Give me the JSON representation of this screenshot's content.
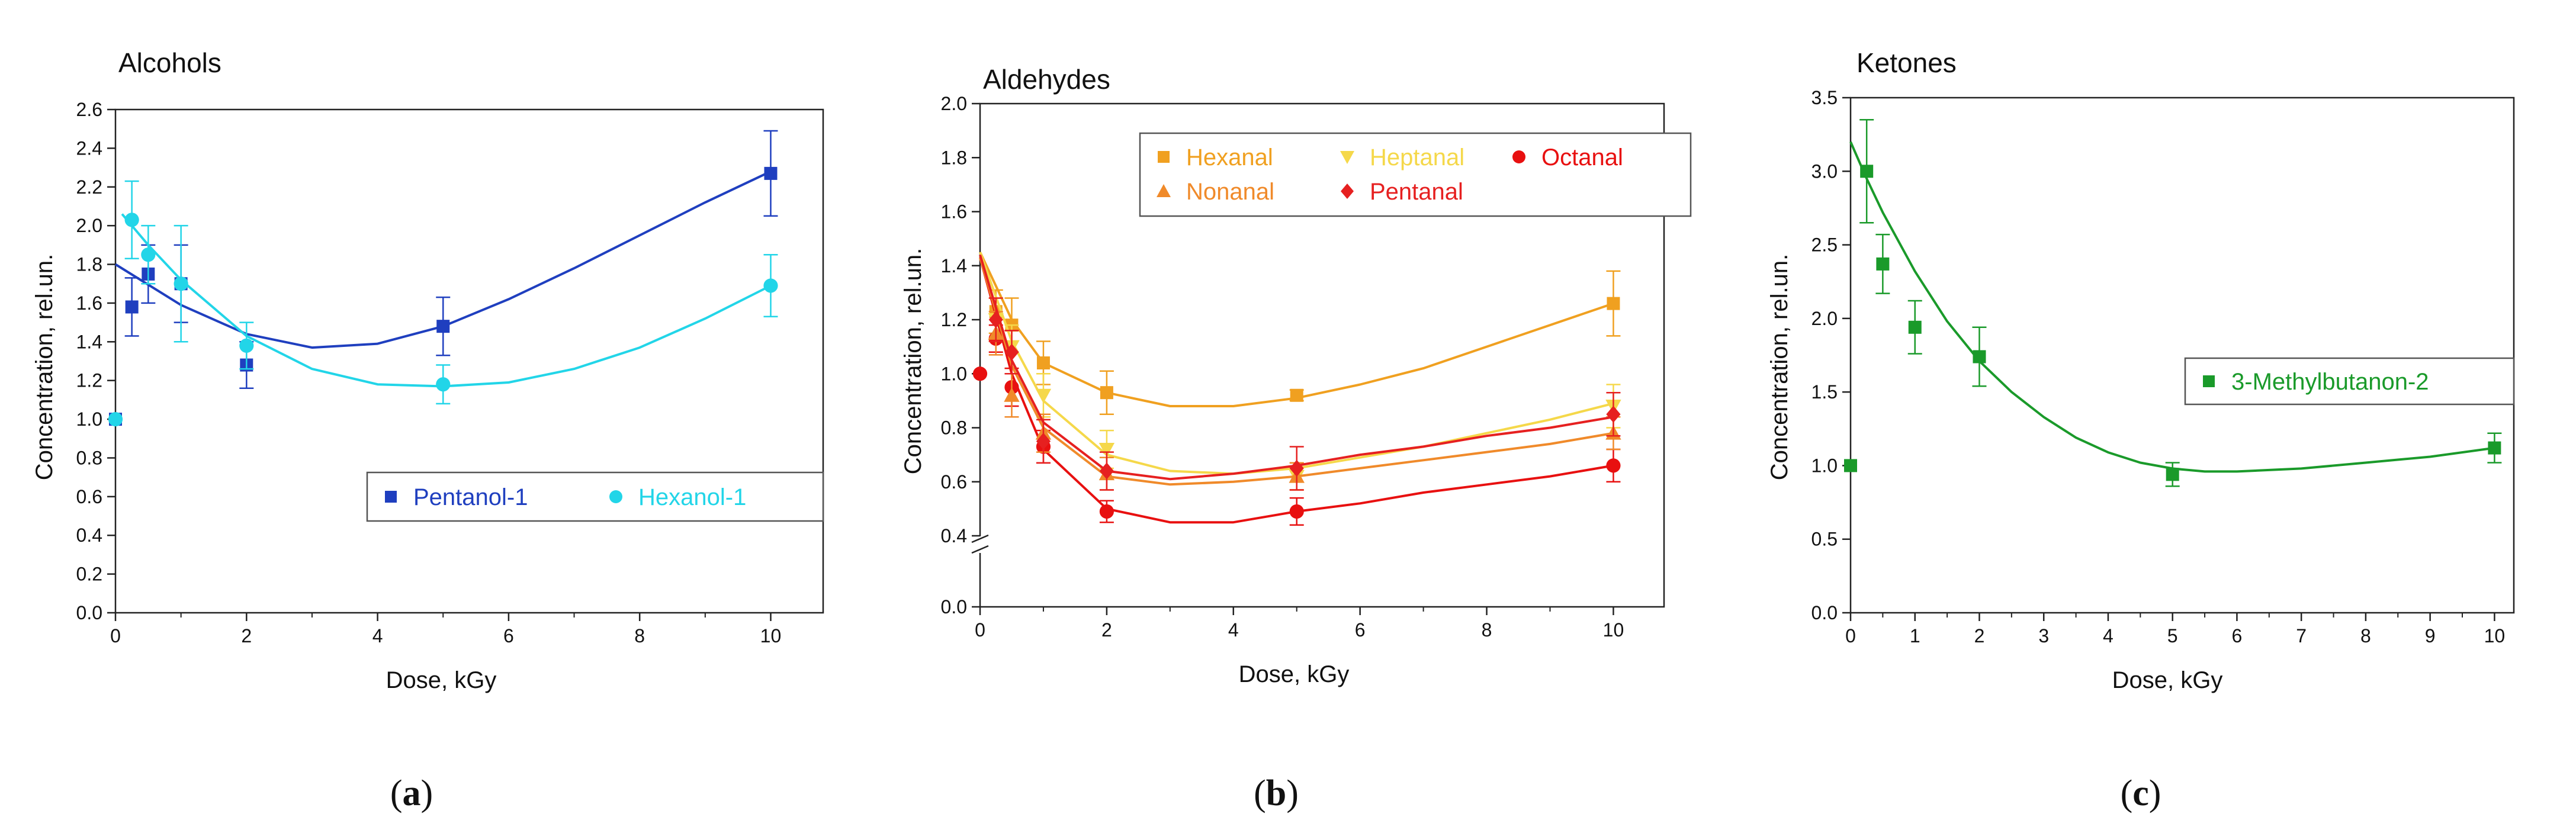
{
  "chart_data": [
    {
      "type": "scatter",
      "title": "Alcohols",
      "xlabel": "Dose, kGy",
      "ylabel": "Concentration, rel.un.",
      "xlim": [
        0,
        10.8
      ],
      "ylim": [
        0,
        2.6
      ],
      "xticks": [
        "0",
        "2",
        "4",
        "6",
        "8",
        "10"
      ],
      "yticks": [
        "0.0",
        "0.2",
        "0.4",
        "0.6",
        "0.8",
        "1.0",
        "1.2",
        "1.4",
        "1.6",
        "1.8",
        "2.0",
        "2.2",
        "2.4",
        "2.6"
      ],
      "legend": {
        "position": "center-right"
      },
      "caption": "a",
      "series": [
        {
          "name": "Pentanol-1",
          "color": "#1f3fbf",
          "marker": "square",
          "x": [
            0,
            0.25,
            0.5,
            1,
            2,
            5,
            10
          ],
          "y": [
            1.0,
            1.58,
            1.75,
            1.7,
            1.28,
            1.48,
            2.27
          ],
          "err": [
            0,
            0.15,
            0.15,
            0.2,
            0.12,
            0.15,
            0.22
          ],
          "fit": [
            [
              0,
              1.8
            ],
            [
              1,
              1.59
            ],
            [
              2,
              1.44
            ],
            [
              3,
              1.37
            ],
            [
              4,
              1.39
            ],
            [
              5,
              1.48
            ],
            [
              6,
              1.62
            ],
            [
              7,
              1.78
            ],
            [
              8,
              1.95
            ],
            [
              9,
              2.12
            ],
            [
              10,
              2.28
            ]
          ]
        },
        {
          "name": "Hexanol-1",
          "color": "#22d5e8",
          "marker": "circle",
          "x": [
            0,
            0.25,
            0.5,
            1,
            2,
            5,
            10
          ],
          "y": [
            1.0,
            2.03,
            1.85,
            1.7,
            1.38,
            1.18,
            1.69
          ],
          "err": [
            0,
            0.2,
            0.15,
            0.3,
            0.12,
            0.1,
            0.16
          ],
          "fit": [
            [
              0.1,
              2.06
            ],
            [
              0.5,
              1.9
            ],
            [
              1,
              1.72
            ],
            [
              2,
              1.43
            ],
            [
              3,
              1.26
            ],
            [
              4,
              1.18
            ],
            [
              5,
              1.17
            ],
            [
              6,
              1.19
            ],
            [
              7,
              1.26
            ],
            [
              8,
              1.37
            ],
            [
              9,
              1.52
            ],
            [
              10,
              1.69
            ]
          ]
        }
      ]
    },
    {
      "type": "scatter",
      "title": "Aldehydes",
      "xlabel": "Dose, kGy",
      "ylabel": "Concentration, rel.un.",
      "xlim": [
        0,
        10.8
      ],
      "ylim": [
        0,
        2.0
      ],
      "axis_break": [
        0.0,
        0.4
      ],
      "xticks": [
        "0",
        "2",
        "4",
        "6",
        "8",
        "10"
      ],
      "yticks": [
        "0.0",
        "0.4",
        "0.6",
        "0.8",
        "1.0",
        "1.2",
        "1.4",
        "1.6",
        "1.8",
        "2.0"
      ],
      "legend": {
        "position": "top-right"
      },
      "caption": "b",
      "series": [
        {
          "name": "Hexanal",
          "color": "#f0a020",
          "marker": "square",
          "x": [
            0.25,
            0.5,
            1,
            2,
            5,
            10
          ],
          "y": [
            1.23,
            1.18,
            1.04,
            0.93,
            0.92,
            1.26
          ],
          "err": [
            0.08,
            0.1,
            0.08,
            0.08,
            0.02,
            0.12
          ],
          "fit": [
            [
              0,
              1.45
            ],
            [
              0.5,
              1.2
            ],
            [
              1,
              1.04
            ],
            [
              2,
              0.93
            ],
            [
              3,
              0.88
            ],
            [
              4,
              0.88
            ],
            [
              5,
              0.91
            ],
            [
              6,
              0.96
            ],
            [
              7,
              1.02
            ],
            [
              8,
              1.1
            ],
            [
              9,
              1.18
            ],
            [
              10,
              1.26
            ]
          ]
        },
        {
          "name": "Heptanal",
          "color": "#f5d84a",
          "marker": "triangle-down",
          "x": [
            0.25,
            0.5,
            1,
            2,
            5,
            10
          ],
          "y": [
            1.2,
            1.1,
            0.92,
            0.72,
            0.62,
            0.88
          ],
          "err": [
            0.08,
            0.08,
            0.08,
            0.07,
            0.05,
            0.08
          ],
          "fit": [
            [
              0,
              1.45
            ],
            [
              0.5,
              1.12
            ],
            [
              1,
              0.9
            ],
            [
              2,
              0.7
            ],
            [
              3,
              0.64
            ],
            [
              4,
              0.63
            ],
            [
              5,
              0.65
            ],
            [
              6,
              0.69
            ],
            [
              7,
              0.73
            ],
            [
              8,
              0.78
            ],
            [
              9,
              0.83
            ],
            [
              10,
              0.89
            ]
          ]
        },
        {
          "name": "Octanal",
          "color": "#e81010",
          "marker": "circle",
          "x": [
            0,
            0.25,
            0.5,
            1,
            2,
            5,
            10
          ],
          "y": [
            1.0,
            1.13,
            0.95,
            0.73,
            0.49,
            0.49,
            0.66
          ],
          "err": [
            0,
            0.05,
            0.07,
            0.06,
            0.04,
            0.05,
            0.06
          ],
          "fit": [
            [
              0,
              1.43
            ],
            [
              0.5,
              1.0
            ],
            [
              1,
              0.72
            ],
            [
              2,
              0.5
            ],
            [
              3,
              0.45
            ],
            [
              4,
              0.45
            ],
            [
              5,
              0.49
            ],
            [
              6,
              0.52
            ],
            [
              7,
              0.56
            ],
            [
              8,
              0.59
            ],
            [
              9,
              0.62
            ],
            [
              10,
              0.66
            ]
          ]
        },
        {
          "name": "Nonanal",
          "color": "#f08a2a",
          "marker": "triangle-up",
          "x": [
            0.25,
            0.5,
            1,
            2,
            5,
            10
          ],
          "y": [
            1.15,
            0.92,
            0.78,
            0.63,
            0.62,
            0.78
          ],
          "err": [
            0.08,
            0.08,
            0.07,
            0.06,
            0.05,
            0.06
          ],
          "fit": [
            [
              0,
              1.43
            ],
            [
              0.5,
              1.03
            ],
            [
              1,
              0.8
            ],
            [
              2,
              0.62
            ],
            [
              3,
              0.59
            ],
            [
              4,
              0.6
            ],
            [
              5,
              0.62
            ],
            [
              6,
              0.65
            ],
            [
              7,
              0.68
            ],
            [
              8,
              0.71
            ],
            [
              9,
              0.74
            ],
            [
              10,
              0.78
            ]
          ]
        },
        {
          "name": "Pentanal",
          "color": "#e62020",
          "marker": "diamond",
          "x": [
            0.25,
            0.5,
            1,
            2,
            5,
            10
          ],
          "y": [
            1.2,
            1.08,
            0.75,
            0.64,
            0.65,
            0.85
          ],
          "err": [
            0.08,
            0.08,
            0.08,
            0.07,
            0.08,
            0.08
          ],
          "fit": [
            [
              0,
              1.44
            ],
            [
              0.5,
              1.05
            ],
            [
              1,
              0.82
            ],
            [
              2,
              0.64
            ],
            [
              3,
              0.61
            ],
            [
              4,
              0.63
            ],
            [
              5,
              0.66
            ],
            [
              6,
              0.7
            ],
            [
              7,
              0.73
            ],
            [
              8,
              0.77
            ],
            [
              9,
              0.8
            ],
            [
              10,
              0.84
            ]
          ]
        }
      ]
    },
    {
      "type": "scatter",
      "title": "Ketones",
      "xlabel": "Dose, kGy",
      "ylabel": "Concentration, rel.un.",
      "xlim": [
        0,
        10.3
      ],
      "ylim": [
        0,
        3.5
      ],
      "xticks": [
        "0",
        "1",
        "2",
        "3",
        "4",
        "5",
        "6",
        "7",
        "8",
        "9",
        "10"
      ],
      "yticks": [
        "0.0",
        "0.5",
        "1.0",
        "1.5",
        "2.0",
        "2.5",
        "3.0",
        "3.5"
      ],
      "legend": {
        "position": "center-right"
      },
      "caption": "c",
      "series": [
        {
          "name": "3-Methylbutanon-2",
          "color": "#1a9a2a",
          "marker": "square",
          "x": [
            0,
            0.25,
            0.5,
            1,
            2,
            5,
            10
          ],
          "y": [
            1.0,
            3.0,
            2.37,
            1.94,
            1.74,
            0.94,
            1.12
          ],
          "err": [
            0,
            0.35,
            0.2,
            0.18,
            0.2,
            0.08,
            0.1
          ],
          "fit": [
            [
              0,
              3.2
            ],
            [
              0.25,
              2.95
            ],
            [
              0.5,
              2.72
            ],
            [
              1,
              2.32
            ],
            [
              1.5,
              1.98
            ],
            [
              2,
              1.71
            ],
            [
              2.5,
              1.5
            ],
            [
              3,
              1.33
            ],
            [
              3.5,
              1.19
            ],
            [
              4,
              1.09
            ],
            [
              4.5,
              1.02
            ],
            [
              5,
              0.98
            ],
            [
              5.5,
              0.96
            ],
            [
              6,
              0.96
            ],
            [
              7,
              0.98
            ],
            [
              8,
              1.02
            ],
            [
              9,
              1.06
            ],
            [
              10,
              1.12
            ]
          ]
        }
      ]
    }
  ]
}
